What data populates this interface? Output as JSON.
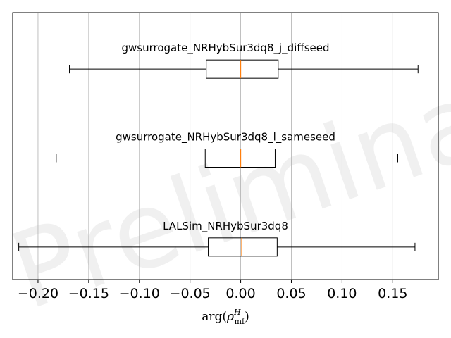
{
  "chart_data": {
    "type": "boxplot",
    "orientation": "horizontal",
    "watermark": "Preliminary",
    "xlabel_parts": {
      "base": "arg(",
      "rho": "ρ",
      "sup": "H",
      "sub": "mf",
      "close": ")"
    },
    "xlim": [
      -0.225,
      0.195
    ],
    "xticks": [
      -0.2,
      -0.15,
      -0.1,
      -0.05,
      0.0,
      0.05,
      0.1,
      0.15
    ],
    "xtick_labels": [
      "−0.20",
      "−0.15",
      "−0.10",
      "−0.05",
      "0.00",
      "0.05",
      "0.10",
      "0.15"
    ],
    "grid": "x",
    "boxes": [
      {
        "label": "gwsurrogate_NRHybSur3dq8_j_diffseed",
        "whisker_low": -0.169,
        "q1": -0.034,
        "median": 0.0,
        "q3": 0.037,
        "whisker_high": 0.175
      },
      {
        "label": "gwsurrogate_NRHybSur3dq8_l_sameseed",
        "whisker_low": -0.182,
        "q1": -0.035,
        "median": 0.0,
        "q3": 0.034,
        "whisker_high": 0.155
      },
      {
        "label": "LALSim_NRHybSur3dq8",
        "whisker_low": -0.219,
        "q1": -0.032,
        "median": 0.001,
        "q3": 0.036,
        "whisker_high": 0.172
      }
    ],
    "colors": {
      "box": "#000000",
      "median": "#ff7f0e",
      "grid": "#b0b0b0"
    }
  }
}
